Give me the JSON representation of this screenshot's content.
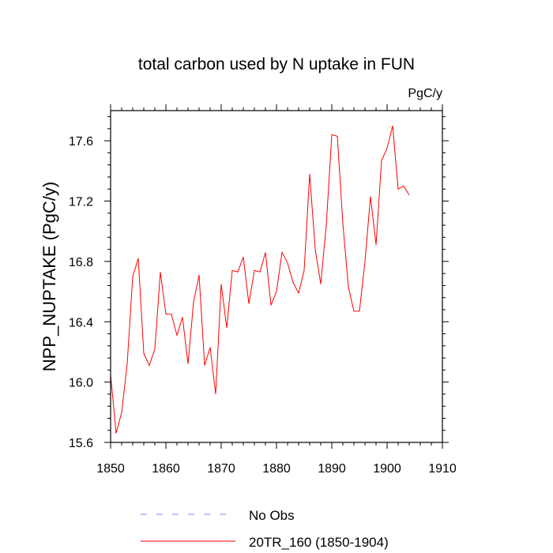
{
  "chart_data": {
    "type": "line",
    "title": "total carbon used by N uptake in FUN",
    "units_label": "PgC/y",
    "xlabel": "",
    "ylabel": "NPP_NUPTAKE  (PgC/y)",
    "xlim": [
      1850,
      1910
    ],
    "ylim": [
      15.6,
      17.8
    ],
    "x_ticks": [
      1850,
      1860,
      1870,
      1880,
      1890,
      1900,
      1910
    ],
    "x_tick_labels": [
      "1850",
      "1860",
      "1870",
      "1880",
      "1890",
      "1900",
      "1910"
    ],
    "y_ticks": [
      15.6,
      16.0,
      16.4,
      16.8,
      17.2,
      17.6
    ],
    "y_tick_labels": [
      "15.6",
      "16.0",
      "16.4",
      "16.8",
      "17.2",
      "17.6"
    ],
    "series": [
      {
        "name": "20TR_160 (1850-1904)",
        "color": "#ff0000",
        "style": "solid",
        "x": [
          1850,
          1851,
          1852,
          1853,
          1854,
          1855,
          1856,
          1857,
          1858,
          1859,
          1860,
          1861,
          1862,
          1863,
          1864,
          1865,
          1866,
          1867,
          1868,
          1869,
          1870,
          1871,
          1872,
          1873,
          1874,
          1875,
          1876,
          1877,
          1878,
          1879,
          1880,
          1881,
          1882,
          1883,
          1884,
          1885,
          1886,
          1887,
          1888,
          1889,
          1890,
          1891,
          1892,
          1893,
          1894,
          1895,
          1896,
          1897,
          1898,
          1899,
          1900,
          1901,
          1902,
          1903,
          1904
        ],
        "values": [
          16.05,
          15.66,
          15.8,
          16.12,
          16.7,
          16.82,
          16.19,
          16.11,
          16.22,
          16.73,
          16.45,
          16.45,
          16.31,
          16.43,
          16.12,
          16.53,
          16.71,
          16.11,
          16.23,
          15.92,
          16.65,
          16.36,
          16.74,
          16.73,
          16.83,
          16.52,
          16.74,
          16.73,
          16.86,
          16.51,
          16.6,
          16.86,
          16.79,
          16.66,
          16.59,
          16.74,
          17.38,
          16.88,
          16.65,
          17.04,
          17.64,
          17.63,
          17.05,
          16.63,
          16.47,
          16.47,
          16.8,
          17.23,
          16.91,
          17.47,
          17.55,
          17.7,
          17.28,
          17.3,
          17.24
        ]
      },
      {
        "name": "No Obs",
        "color": "#8080ff",
        "style": "dashed",
        "x": [],
        "values": []
      }
    ],
    "legend": {
      "placement": "bottom",
      "entries": [
        {
          "label": "No Obs",
          "color": "#8080ff",
          "style": "dashed"
        },
        {
          "label": "20TR_160 (1850-1904)",
          "color": "#ff0000",
          "style": "solid"
        }
      ]
    }
  }
}
